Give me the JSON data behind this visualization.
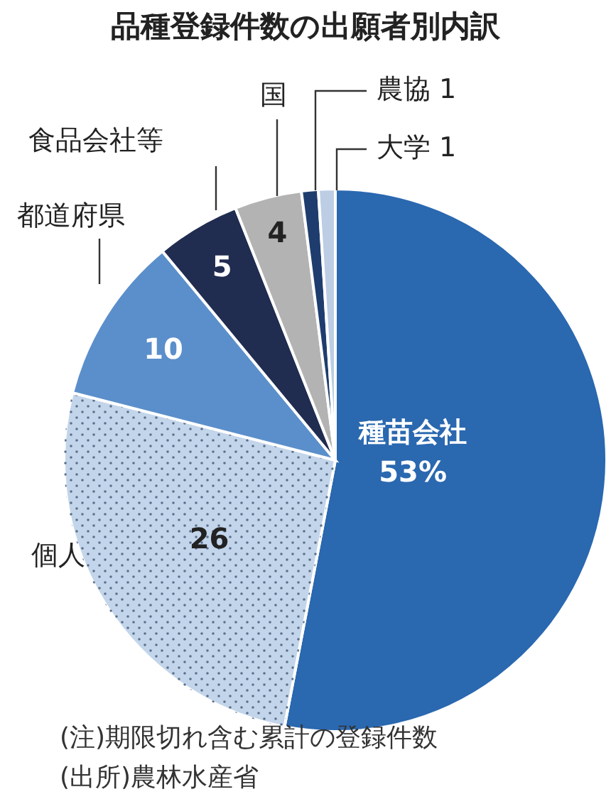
{
  "chart_data": {
    "type": "pie",
    "title": "品種登録件数の出願者別内訳",
    "categories": [
      "種苗会社",
      "個人",
      "都道府県",
      "食品会社等",
      "国",
      "農協",
      "大学"
    ],
    "values": [
      53,
      26,
      10,
      5,
      4,
      1,
      1
    ],
    "value_labels": [
      "53%",
      "26",
      "10",
      "5",
      "4",
      "1",
      "1"
    ],
    "colors": [
      "#2a68b0",
      "#c3d5ea",
      "#5b8fcb",
      "#202c50",
      "#b3b3b3",
      "#1e3d6e",
      "#bccde4"
    ],
    "annotations": [
      "(注)期限切れ含む累計の登録件数",
      "(出所)農林水産省"
    ]
  }
}
